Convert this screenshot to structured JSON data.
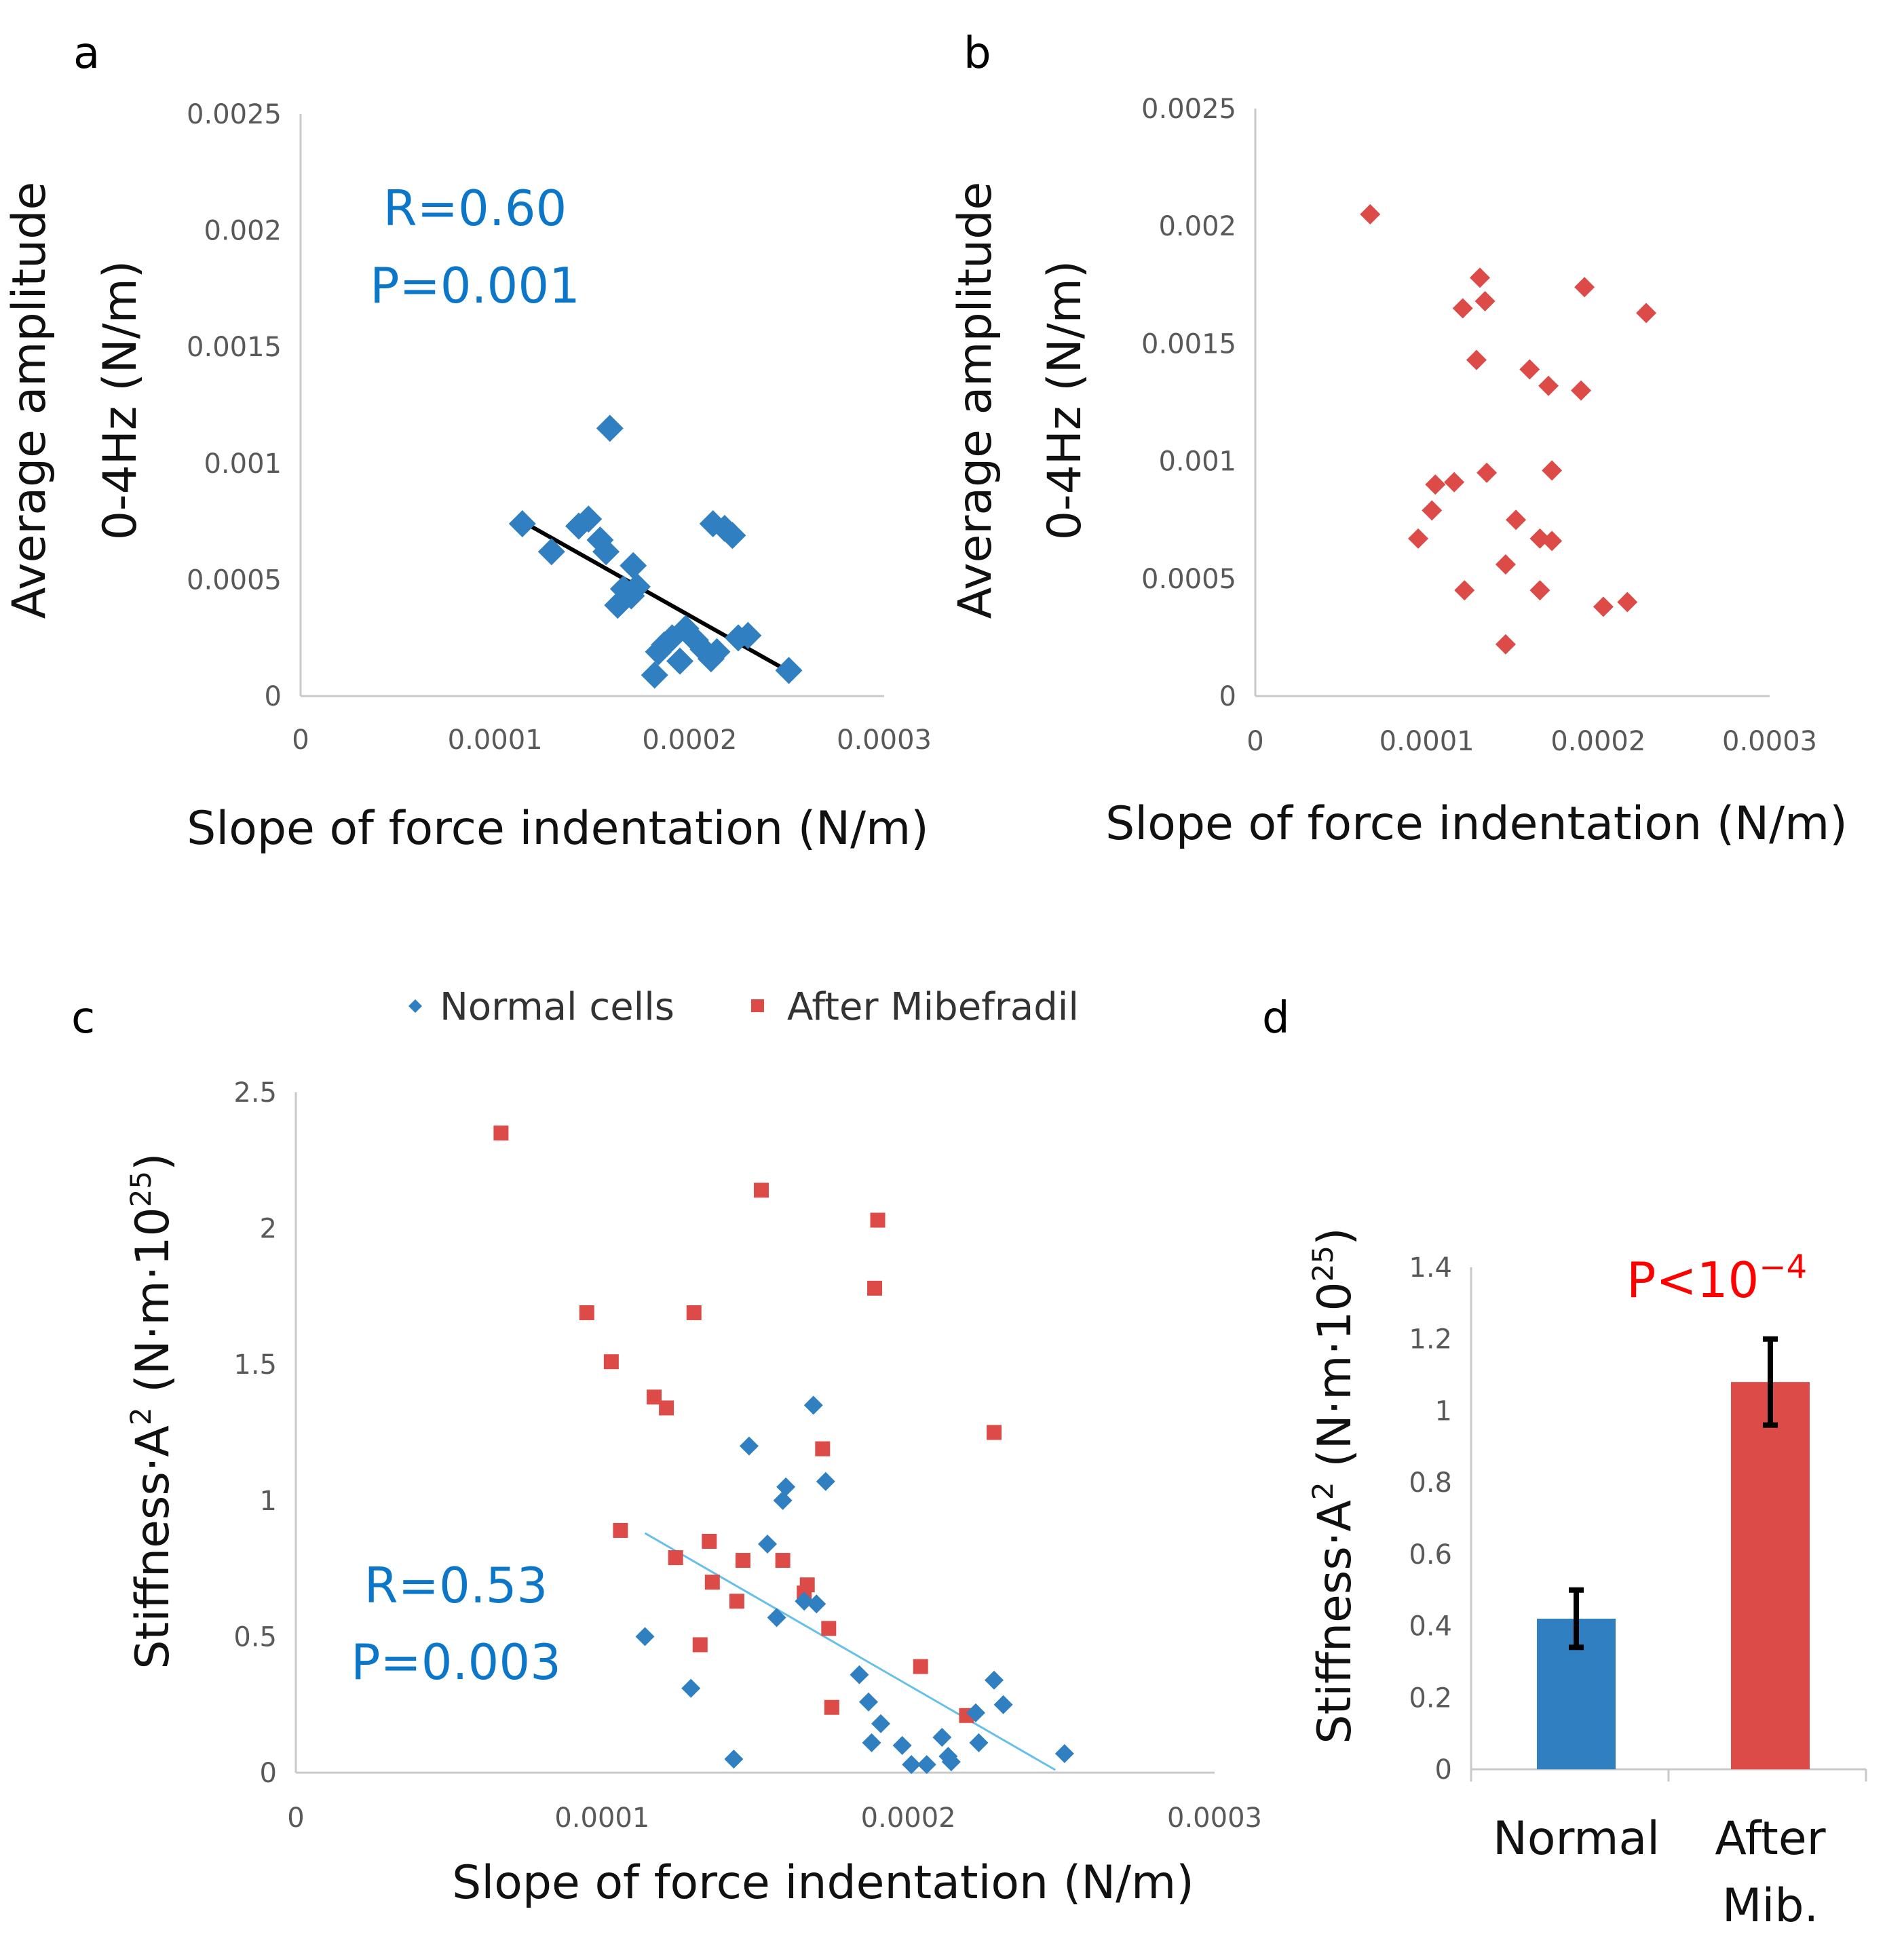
{
  "colors": {
    "normal": "#2f7fc1",
    "mibefradil": "#dd4b48",
    "fit_a": "#000000",
    "fit_c": "#66c0e8",
    "stat_blue": "#0c77c9",
    "stat_red": "#ff0000",
    "axis": "#c9c9c9"
  },
  "chart_data": [
    {
      "panel": "a",
      "type": "scatter",
      "xlabel": "Slope of force indentation (N/m)",
      "ylabel": [
        "Average amplitude",
        "0-4Hz (N/m)"
      ],
      "xlim": [
        0,
        0.0003
      ],
      "ylim": [
        0,
        0.0025
      ],
      "x_ticks": [
        0,
        0.0001,
        0.0002,
        0.0003
      ],
      "x_tick_labels": [
        "0",
        "0.0001",
        "0.0002",
        "0.0003"
      ],
      "y_ticks": [
        0,
        0.0005,
        0.001,
        0.0015,
        0.002,
        0.0025
      ],
      "y_tick_labels": [
        "0",
        "0.0005",
        "0.001",
        "0.0015",
        "0.002",
        "0.0025"
      ],
      "annotations": [
        "R=0.60",
        "P=0.001"
      ],
      "series": [
        {
          "name": "Normal cells",
          "marker": "diamond",
          "x": [
            0.000114,
            0.000129,
            0.000143,
            0.000148,
            0.000154,
            0.000157,
            0.000159,
            0.000163,
            0.000166,
            0.00017,
            0.000171,
            0.000173,
            0.000182,
            0.000184,
            0.000187,
            0.000191,
            0.000195,
            0.000198,
            0.000203,
            0.000207,
            0.000211,
            0.000212,
            0.000214,
            0.000218,
            0.000222,
            0.000225,
            0.00023,
            0.000251
          ],
          "y": [
            0.00074,
            0.00062,
            0.00073,
            0.00076,
            0.00067,
            0.00062,
            0.00115,
            0.00039,
            0.00046,
            0.00043,
            0.00056,
            0.00047,
            9e-05,
            0.00019,
            0.00022,
            0.00025,
            0.00015,
            0.00029,
            0.00024,
            0.0002,
            0.00016,
            0.00074,
            0.00019,
            0.00072,
            0.00069,
            0.00025,
            0.00026,
            0.00011
          ]
        }
      ],
      "fit_line": {
        "x": [
          0.000114,
          0.00025
        ],
        "y": [
          0.00075,
          0.00011
        ]
      }
    },
    {
      "panel": "b",
      "type": "scatter",
      "xlabel": "Slope of force indentation (N/m)",
      "ylabel": [
        "Average amplitude",
        "0-4Hz (N/m)"
      ],
      "xlim": [
        0,
        0.0003
      ],
      "ylim": [
        0,
        0.0025
      ],
      "x_ticks": [
        0,
        0.0001,
        0.0002,
        0.0003
      ],
      "x_tick_labels": [
        "0",
        "0.0001",
        "0.0002",
        "0.0003"
      ],
      "y_ticks": [
        0,
        0.0005,
        0.001,
        0.0015,
        0.002,
        0.0025
      ],
      "y_tick_labels": [
        "0",
        "0.0005",
        "0.001",
        "0.0015",
        "0.002",
        "0.0025"
      ],
      "series": [
        {
          "name": "After Mibefradil",
          "marker": "diamond",
          "x": [
            6.7e-05,
            9.5e-05,
            0.000103,
            0.000105,
            0.000116,
            0.000121,
            0.000122,
            0.000129,
            0.000131,
            0.000134,
            0.000135,
            0.000146,
            0.000146,
            0.000152,
            0.00016,
            0.000166,
            0.000166,
            0.000171,
            0.000173,
            0.000173,
            0.00019,
            0.000192,
            0.000203,
            0.000217,
            0.000228
          ],
          "y": [
            0.00205,
            0.00067,
            0.00079,
            0.0009,
            0.00091,
            0.00165,
            0.00045,
            0.00143,
            0.00178,
            0.00168,
            0.00095,
            0.00056,
            0.00022,
            0.00075,
            0.00139,
            0.00067,
            0.00045,
            0.00132,
            0.00096,
            0.00066,
            0.0013,
            0.00174,
            0.00038,
            0.0004,
            0.00163
          ]
        }
      ]
    },
    {
      "panel": "c",
      "type": "scatter",
      "xlabel": "Slope of force indentation (N/m)",
      "ylabel": "Stiffness·A² (N·m·10²⁵)",
      "xlim": [
        0,
        0.0003
      ],
      "ylim": [
        0,
        2.5
      ],
      "x_ticks": [
        0,
        0.0001,
        0.0002,
        0.0003
      ],
      "x_tick_labels": [
        "0",
        "0.0001",
        "0.0002",
        "0.0003"
      ],
      "y_ticks": [
        0,
        0.5,
        1,
        1.5,
        2,
        2.5
      ],
      "y_tick_labels": [
        "0",
        "0.5",
        "1",
        "1.5",
        "2",
        "2.5"
      ],
      "annotations": [
        "R=0.53",
        "P=0.003"
      ],
      "legend": [
        "Normal cells",
        "After Mibefradil"
      ],
      "legend_position": "top",
      "series": [
        {
          "name": "Normal cells",
          "marker": "diamond",
          "x": [
            0.000114,
            0.000129,
            0.000143,
            0.000148,
            0.000154,
            0.000157,
            0.000159,
            0.00016,
            0.000166,
            0.000169,
            0.00017,
            0.000173,
            0.000184,
            0.000187,
            0.000188,
            0.000191,
            0.000198,
            0.000201,
            0.000206,
            0.000211,
            0.000213,
            0.000214,
            0.000222,
            0.000223,
            0.000228,
            0.000231,
            0.000251
          ],
          "y": [
            0.5,
            0.31,
            0.05,
            1.2,
            0.84,
            0.57,
            1.0,
            1.05,
            0.63,
            1.35,
            0.62,
            1.07,
            0.36,
            0.26,
            0.11,
            0.18,
            0.1,
            0.03,
            0.03,
            0.13,
            0.06,
            0.04,
            0.22,
            0.11,
            0.34,
            0.25,
            0.07
          ]
        },
        {
          "name": "After Mibefradil",
          "marker": "square",
          "x": [
            6.7e-05,
            9.5e-05,
            0.000103,
            0.000106,
            0.000117,
            0.000121,
            0.000124,
            0.00013,
            0.000132,
            0.000135,
            0.000136,
            0.000144,
            0.000146,
            0.000152,
            0.000159,
            0.000166,
            0.000167,
            0.000172,
            0.000174,
            0.000175,
            0.000189,
            0.00019,
            0.000204,
            0.000219,
            0.000228
          ],
          "y": [
            2.35,
            1.69,
            1.51,
            0.89,
            1.38,
            1.34,
            0.79,
            1.69,
            0.47,
            0.85,
            0.7,
            0.63,
            0.78,
            2.14,
            0.78,
            0.66,
            0.69,
            1.19,
            0.53,
            0.24,
            1.78,
            2.03,
            0.39,
            0.21,
            1.25
          ]
        }
      ],
      "fit_line": {
        "x": [
          0.000114,
          0.000248
        ],
        "y": [
          0.88,
          0.01
        ]
      }
    },
    {
      "panel": "d",
      "type": "bar",
      "ylabel": "Stiffness·A² (N·m·10²⁵)",
      "ylim": [
        0,
        1.4
      ],
      "y_ticks": [
        0,
        0.2,
        0.4,
        0.6,
        0.8,
        1,
        1.2,
        1.4
      ],
      "y_tick_labels": [
        "0",
        "0.2",
        "0.4",
        "0.6",
        "0.8",
        "1",
        "1.2",
        "1.4"
      ],
      "categories": [
        [
          "Normal"
        ],
        [
          "After",
          "Mib."
        ]
      ],
      "values": [
        0.42,
        1.08
      ],
      "errors": [
        0.08,
        0.12
      ],
      "bar_colors": [
        "#2f7fc1",
        "#dd4b48"
      ],
      "annotations": [
        "P<10⁻⁴"
      ]
    }
  ],
  "labels": {
    "a": "a",
    "b": "b",
    "c": "c",
    "d": "d",
    "a_r": "R=0.60",
    "a_p": "P=0.001",
    "c_r": "R=0.53",
    "c_p": "P=0.003",
    "d_p": "P<10",
    "d_p_exp": "−4",
    "xlabel": "Slope of force indentation (N/m)",
    "ylabel_ab_1": "Average amplitude",
    "ylabel_ab_2": "0-4Hz (N/m)",
    "ylabel_cd_a": "Stiffness·A",
    "ylabel_cd_sup1": "2",
    "ylabel_cd_b": " (N·m·10",
    "ylabel_cd_sup2": "25",
    "ylabel_cd_c": ")",
    "legend_normal": "Normal cells",
    "legend_mib": "After Mibefradil",
    "bar_cat_1": "Normal",
    "bar_cat_2a": "After",
    "bar_cat_2b": "Mib."
  }
}
